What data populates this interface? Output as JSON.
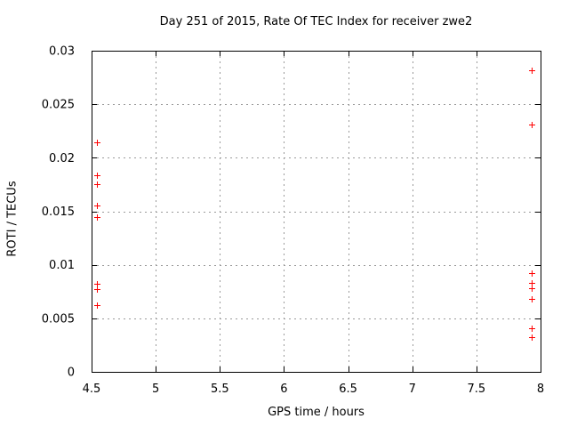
{
  "chart_data": {
    "type": "scatter",
    "title": "Day 251 of 2015, Rate Of TEC Index for receiver zwe2",
    "xlabel": "GPS time / hours",
    "ylabel": "ROTI / TECUs",
    "xlim": [
      4.5,
      8
    ],
    "ylim": [
      0,
      0.03
    ],
    "xticks": {
      "values": [
        4.5,
        5,
        5.5,
        6,
        6.5,
        7,
        7.5,
        8
      ],
      "labels": [
        "4.5",
        "5",
        "5.5",
        "6",
        "6.5",
        "7",
        "7.5",
        "8"
      ]
    },
    "yticks": {
      "values": [
        0,
        0.005,
        0.01,
        0.015,
        0.02,
        0.025,
        0.03
      ],
      "labels": [
        "0",
        "0.005",
        "0.01",
        "0.015",
        "0.02",
        "0.025",
        "0.03"
      ]
    },
    "grid": true,
    "legend": "none",
    "series": [
      {
        "name": "ROTI",
        "marker": "plus",
        "color": "#ff0000",
        "points": [
          {
            "x": 4.54,
            "y": 0.0214
          },
          {
            "x": 4.54,
            "y": 0.0184
          },
          {
            "x": 4.54,
            "y": 0.0175
          },
          {
            "x": 4.54,
            "y": 0.0155
          },
          {
            "x": 4.54,
            "y": 0.0145
          },
          {
            "x": 4.54,
            "y": 0.0082
          },
          {
            "x": 4.54,
            "y": 0.0077
          },
          {
            "x": 4.54,
            "y": 0.0062
          },
          {
            "x": 7.93,
            "y": 0.0282
          },
          {
            "x": 7.93,
            "y": 0.0231
          },
          {
            "x": 7.93,
            "y": 0.0092
          },
          {
            "x": 7.93,
            "y": 0.0083
          },
          {
            "x": 7.93,
            "y": 0.0078
          },
          {
            "x": 7.93,
            "y": 0.0068
          },
          {
            "x": 7.93,
            "y": 0.0041
          },
          {
            "x": 7.93,
            "y": 0.0032
          }
        ]
      }
    ]
  },
  "colors": {
    "marker": "#ff0000",
    "grid": "#9a9a9a",
    "axis": "#000000",
    "background": "#ffffff",
    "text": "#000000"
  }
}
